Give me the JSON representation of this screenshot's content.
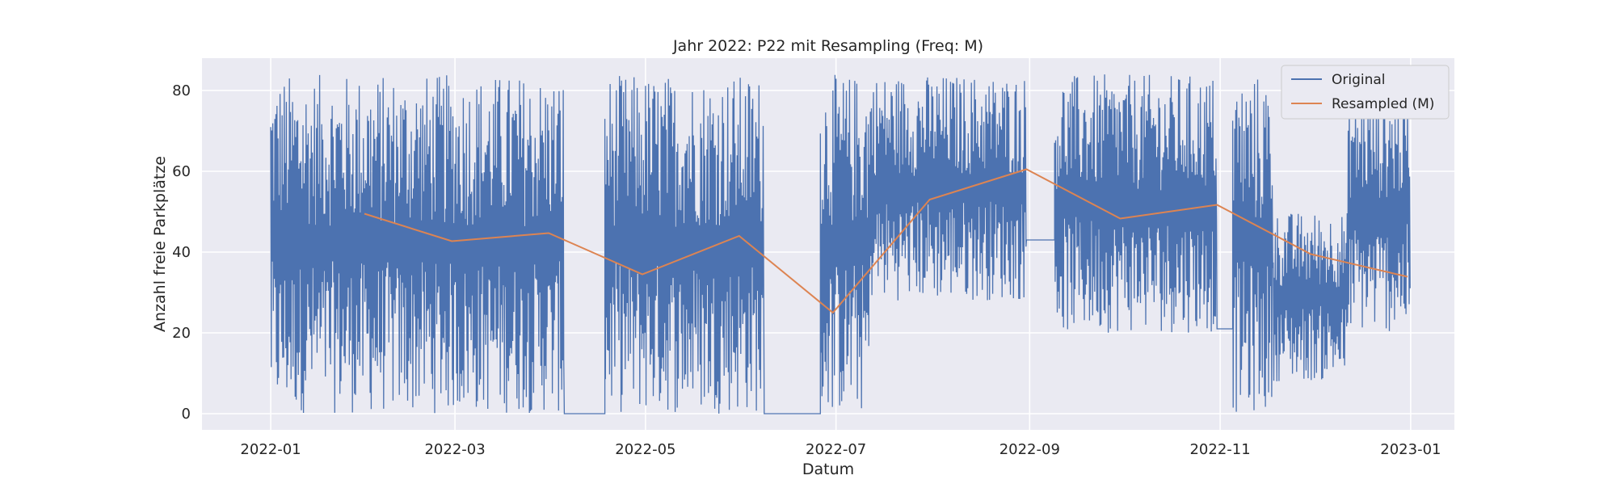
{
  "chart_data": {
    "type": "line",
    "title": "Jahr 2022: P22 mit Resampling (Freq: M)",
    "xlabel": "Datum",
    "ylabel": "Anzahl freie Parkplätze",
    "xlim": [
      "2021-12-10",
      "2023-01-15"
    ],
    "ylim": [
      -4,
      88
    ],
    "x_ticks": [
      "2022-01",
      "2022-03",
      "2022-05",
      "2022-07",
      "2022-09",
      "2022-11",
      "2023-01"
    ],
    "y_ticks": [
      0,
      20,
      40,
      60,
      80
    ],
    "grid": true,
    "legend_position": "upper right",
    "series": [
      {
        "name": "Original",
        "color": "#4c72b0",
        "rendering": "dense hourly data, oscillating per day",
        "segments": [
          {
            "x": [
              "2022-01-01",
              "2022-04-05"
            ],
            "y": [
              0,
              84
            ]
          },
          {
            "x": [
              "2022-04-05",
              "2022-04-18"
            ],
            "y": [
              0,
              0
            ]
          },
          {
            "x": [
              "2022-04-18",
              "2022-06-08"
            ],
            "y": [
              0,
              84
            ]
          },
          {
            "x": [
              "2022-06-08",
              "2022-06-26"
            ],
            "y": [
              0,
              0
            ]
          },
          {
            "x": [
              "2022-06-26",
              "2022-07-12"
            ],
            "y": [
              0,
              84
            ]
          },
          {
            "x": [
              "2022-07-12",
              "2022-08-31"
            ],
            "y": [
              28,
              84
            ]
          },
          {
            "x": [
              "2022-08-31",
              "2022-09-09"
            ],
            "y": [
              43,
              43
            ]
          },
          {
            "x": [
              "2022-09-09",
              "2022-10-31"
            ],
            "y": [
              20,
              84
            ]
          },
          {
            "x": [
              "2022-10-31",
              "2022-11-05"
            ],
            "y": [
              21,
              21
            ]
          },
          {
            "x": [
              "2022-11-05",
              "2022-11-18"
            ],
            "y": [
              0,
              84
            ]
          },
          {
            "x": [
              "2022-11-18",
              "2022-12-12"
            ],
            "y": [
              8,
              50
            ]
          },
          {
            "x": [
              "2022-12-12",
              "2023-01-01"
            ],
            "y": [
              20,
              80
            ]
          }
        ]
      },
      {
        "name": "Resampled (M)",
        "color": "#dd8452",
        "x": [
          "2022-01-31",
          "2022-02-28",
          "2022-03-31",
          "2022-04-30",
          "2022-05-31",
          "2022-06-30",
          "2022-07-31",
          "2022-08-31",
          "2022-09-30",
          "2022-10-31",
          "2022-11-30",
          "2022-12-31"
        ],
        "y": [
          49.5,
          42.7,
          44.7,
          34.5,
          44.0,
          25.0,
          53.0,
          60.5,
          48.3,
          51.7,
          39.5,
          33.9
        ]
      }
    ]
  }
}
